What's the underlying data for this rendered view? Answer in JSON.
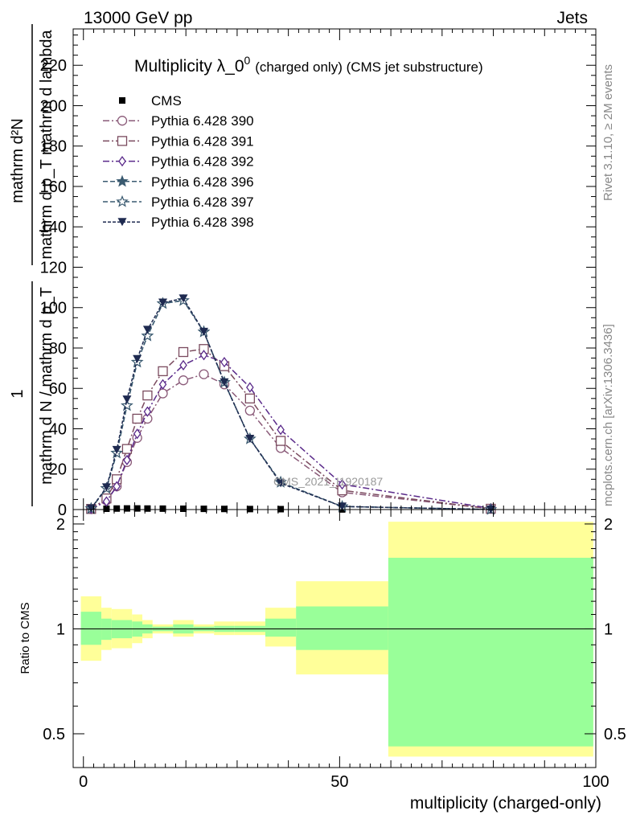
{
  "header": {
    "left": "13000 GeV pp",
    "right": "Jets"
  },
  "side_text": {
    "top": "Rivet 3.1.10, ≥ 2M events",
    "bottom": "mcplots.cern.ch [arXiv:1306.3436]"
  },
  "watermark": "CMS_2021_I1920187",
  "chart_data": [
    {
      "type": "line",
      "title": "Multiplicity λ_0⁰",
      "title_main": "Multiplicity λ_0",
      "title_sup": "0",
      "subtitle": "(charged only) (CMS jet substructure)",
      "xlabel": "",
      "ylabel_top": "1",
      "ylabel_bottom": "mathrm d N / mathrm d p_T mathrm d p_T mathrm d lambda",
      "ylabel_top_right": "mathrm d²N",
      "ylabel_frac_num": "mathrm d²N",
      "ylabel_frac_den": "mathrm d p_T mathrm d lambda",
      "ylabel_prefix_num": "1",
      "ylabel_prefix_den": "mathrm d N / mathrm d p_T",
      "xlim": [
        -2,
        100
      ],
      "ylim": [
        0,
        238
      ],
      "yticks": [
        0,
        20,
        40,
        60,
        80,
        100,
        120,
        140,
        160,
        180,
        200,
        220
      ],
      "legend_position": "top-left",
      "series": [
        {
          "name": "CMS",
          "marker": "square-filled",
          "color": "#000000",
          "dash": "none",
          "x": [
            1.5,
            4.5,
            6.5,
            8.5,
            10.5,
            12.5,
            15.5,
            19.5,
            23.5,
            27.5,
            32.5,
            38.5,
            50.5,
            79.5
          ],
          "y": [
            0.05,
            0.4,
            0.5,
            0.55,
            0.55,
            0.5,
            0.45,
            0.4,
            0.35,
            0.3,
            0.25,
            0.2,
            0.05,
            0.002
          ]
        },
        {
          "name": "Pythia 6.428 390",
          "marker": "circle-open",
          "color": "#8a5a78",
          "dash": "8,3,2,3",
          "x": [
            1.5,
            4.5,
            6.5,
            8.5,
            10.5,
            12.5,
            15.5,
            19.5,
            23.5,
            27.5,
            32.5,
            38.5,
            50.5,
            79.5
          ],
          "y": [
            0.3,
            4.5,
            11.5,
            23.5,
            35.5,
            45,
            57.5,
            64,
            67,
            62,
            49,
            30.5,
            8.5,
            0.4
          ]
        },
        {
          "name": "Pythia 6.428 391",
          "marker": "square-open",
          "color": "#7a4a5e",
          "dash": "8,3,2,3",
          "x": [
            1.5,
            4.5,
            6.5,
            8.5,
            10.5,
            12.5,
            15.5,
            19.5,
            23.5,
            27.5,
            32.5,
            38.5,
            50.5,
            79.5
          ],
          "y": [
            0.3,
            5.5,
            15,
            30,
            45,
            56.5,
            68.5,
            78,
            79.5,
            71,
            55,
            34,
            9.5,
            0.4
          ]
        },
        {
          "name": "Pythia 6.428 392",
          "marker": "diamond-open",
          "color": "#5a2a8a",
          "dash": "8,3,2,3",
          "x": [
            1.5,
            4.5,
            6.5,
            8.5,
            10.5,
            12.5,
            15.5,
            19.5,
            23.5,
            27.5,
            32.5,
            38.5,
            50.5,
            79.5
          ],
          "y": [
            0.3,
            4,
            11.5,
            24.5,
            37.5,
            48.5,
            62,
            71.5,
            76.5,
            73,
            60.5,
            39.5,
            12.5,
            0.6
          ]
        },
        {
          "name": "Pythia 6.428 396",
          "marker": "star-filled",
          "color": "#3a5a70",
          "dash": "6,3",
          "x": [
            1.5,
            4.5,
            6.5,
            8.5,
            10.5,
            12.5,
            15.5,
            19.5,
            23.5,
            27.5,
            32.5,
            38.5,
            50.5,
            79.5
          ],
          "y": [
            0.5,
            10.5,
            28,
            51.5,
            73,
            86,
            102,
            103.5,
            88,
            63,
            35,
            13.5,
            1.5,
            0.02
          ]
        },
        {
          "name": "Pythia 6.428 397",
          "marker": "star-open",
          "color": "#3a5a70",
          "dash": "6,3",
          "x": [
            1.5,
            4.5,
            6.5,
            8.5,
            10.5,
            12.5,
            15.5,
            19.5,
            23.5,
            27.5,
            32.5,
            38.5,
            50.5,
            79.5
          ],
          "y": [
            0.5,
            10.5,
            28,
            51.5,
            73,
            86,
            102,
            103.5,
            88,
            63,
            35,
            13.5,
            1.5,
            0.02
          ]
        },
        {
          "name": "Pythia 6.428 398",
          "marker": "triangle-down-filled",
          "color": "#1e2a50",
          "dash": "4,2",
          "x": [
            1.5,
            4.5,
            6.5,
            8.5,
            10.5,
            12.5,
            15.5,
            19.5,
            23.5,
            27.5,
            32.5,
            38.5,
            50.5,
            79.5
          ],
          "y": [
            0.5,
            11,
            29.5,
            54.5,
            74.5,
            89,
            102.5,
            104.5,
            88,
            63,
            35,
            13,
            1.5,
            0.02
          ]
        }
      ]
    },
    {
      "type": "area",
      "ylabel": "Ratio to CMS",
      "xlabel": "multiplicity (charged-only)",
      "xlim": [
        -2,
        100
      ],
      "xticks": [
        0,
        50,
        100
      ],
      "ylim": [
        0.4,
        2.2
      ],
      "log_y": true,
      "yticks": [
        0.5,
        1,
        2
      ],
      "reference_line": 1,
      "bins_x": [
        [
          -0.5,
          3.5
        ],
        [
          3.5,
          5.5
        ],
        [
          5.5,
          9.5
        ],
        [
          9.5,
          11.5
        ],
        [
          11.5,
          13.5
        ],
        [
          13.5,
          17.5
        ],
        [
          17.5,
          21.5
        ],
        [
          21.5,
          25.5
        ],
        [
          25.5,
          29.5
        ],
        [
          29.5,
          35.5
        ],
        [
          35.5,
          41.5
        ],
        [
          41.5,
          59.5
        ],
        [
          59.5,
          99.5
        ]
      ],
      "band_yellow": [
        [
          0.81,
          1.24
        ],
        [
          0.87,
          1.15
        ],
        [
          0.88,
          1.14
        ],
        [
          0.91,
          1.1
        ],
        [
          0.94,
          1.06
        ],
        [
          0.97,
          1.03
        ],
        [
          0.95,
          1.06
        ],
        [
          0.97,
          1.03
        ],
        [
          0.96,
          1.05
        ],
        [
          0.96,
          1.05
        ],
        [
          0.89,
          1.15
        ],
        [
          0.74,
          1.37
        ],
        [
          0.43,
          2.03
        ]
      ],
      "band_green": [
        [
          0.9,
          1.12
        ],
        [
          0.93,
          1.07
        ],
        [
          0.94,
          1.06
        ],
        [
          0.95,
          1.05
        ],
        [
          0.97,
          1.03
        ],
        [
          0.985,
          1.015
        ],
        [
          0.97,
          1.03
        ],
        [
          0.985,
          1.015
        ],
        [
          0.98,
          1.02
        ],
        [
          0.98,
          1.02
        ],
        [
          0.95,
          1.07
        ],
        [
          0.87,
          1.16
        ],
        [
          0.46,
          1.6
        ]
      ],
      "colors": {
        "yellow": "#ffff99",
        "green": "#99ff99"
      }
    }
  ]
}
